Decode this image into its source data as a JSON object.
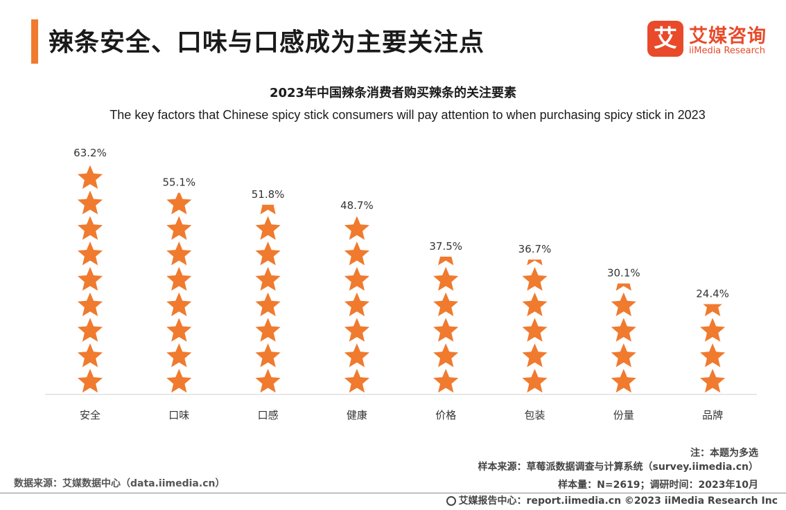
{
  "header": {
    "title": "辣条安全、口味与口感成为主要关注点",
    "logo_mark": "艾",
    "logo_cn": "艾媒咨询",
    "logo_en": "iiMedia Research"
  },
  "chart_data": {
    "type": "bar",
    "title": "2023年中国辣条消费者购买辣条的关注要素",
    "subtitle": "The key factors that Chinese spicy stick consumers will pay attention to when purchasing spicy stick in 2023",
    "categories": [
      "安全",
      "口味",
      "口感",
      "健康",
      "价格",
      "包装",
      "份量",
      "品牌"
    ],
    "values": [
      63.2,
      55.1,
      51.8,
      48.7,
      37.5,
      36.7,
      30.1,
      24.4
    ],
    "value_labels": [
      "63.2%",
      "55.1%",
      "51.8%",
      "48.7%",
      "37.5%",
      "36.7%",
      "30.1%",
      "24.4%"
    ],
    "unit": "%",
    "ylim": [
      0,
      63.2
    ],
    "grid": false,
    "mark": "star-pictograph",
    "color": "#f07a2e"
  },
  "notes": {
    "multi": "注：本题为多选",
    "sample_source": "样本来源：草莓派数据调查与计算系统（survey.iimedia.cn）",
    "sample_size": "样本量：N=2619；调研时间：2023年10月",
    "data_source": "数据来源：艾媒数据中心（data.iimedia.cn）"
  },
  "footer": {
    "text": "艾媒报告中心：report.iimedia.cn  ©2023  iiMedia Research  Inc"
  }
}
